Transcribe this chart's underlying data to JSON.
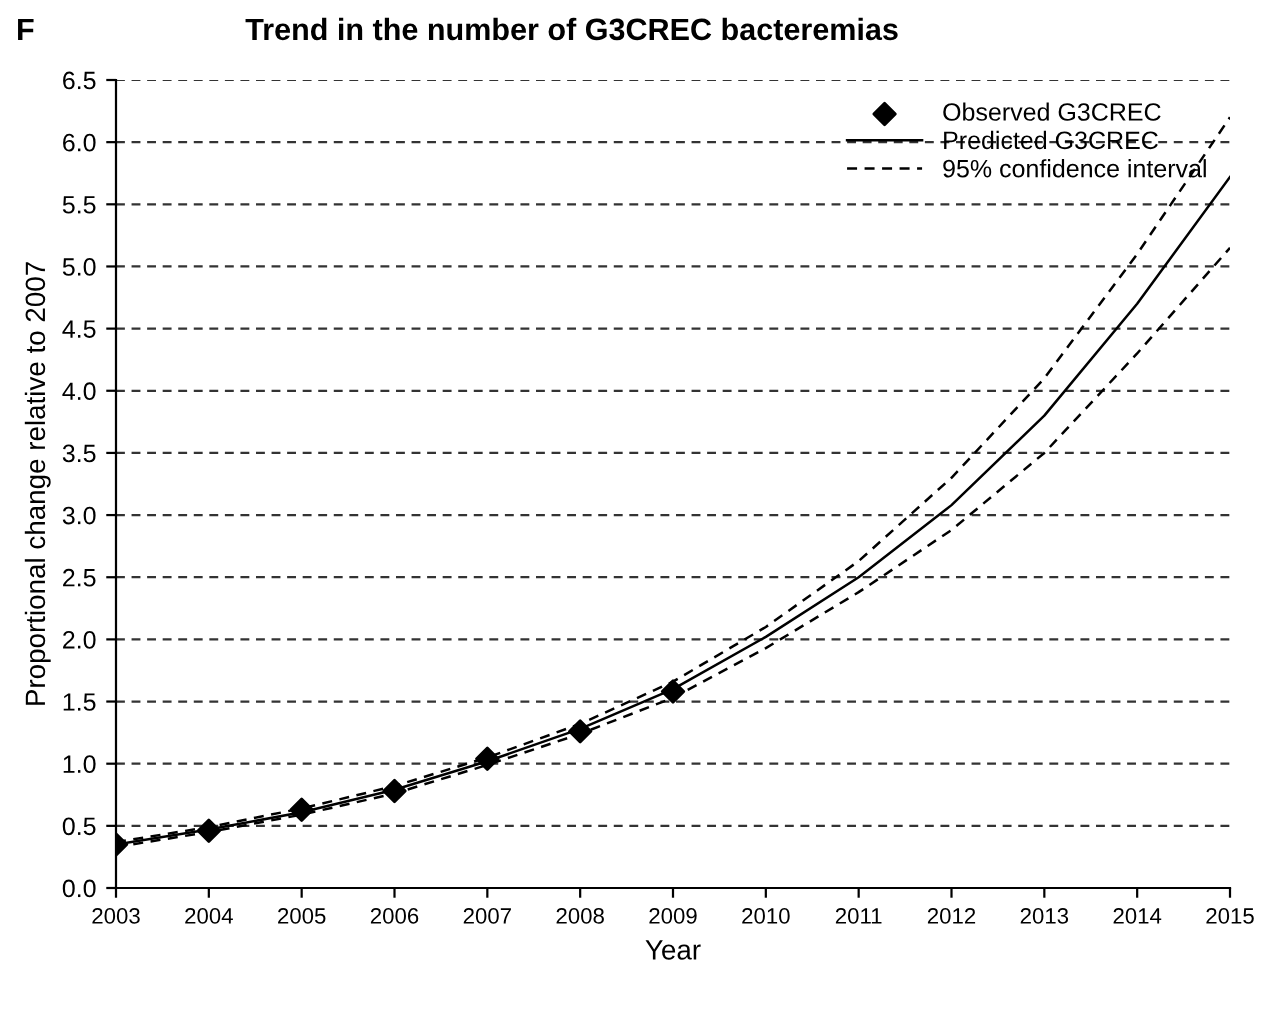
{
  "chart_data": {
    "type": "line",
    "title": "Trend in the number of G3CREC bacteremias",
    "xlabel": "Year",
    "ylabel": "Proportional change relative to 2007",
    "annotations": [
      "F"
    ],
    "x": [
      2003,
      2004,
      2005,
      2006,
      2007,
      2008,
      2009,
      2010,
      2011,
      2012,
      2013,
      2014,
      2015
    ],
    "series": [
      {
        "name": "Observed G3CREC",
        "type": "scatter",
        "marker": "diamond",
        "color": "#000000",
        "x": [
          2003,
          2004,
          2005,
          2006,
          2007,
          2008,
          2009
        ],
        "values": [
          0.35,
          0.46,
          0.63,
          0.78,
          1.04,
          1.26,
          1.58
        ]
      },
      {
        "name": "Predicted G3CREC",
        "line_style": "solid",
        "marker": "none",
        "color": "#000000",
        "values": [
          0.35,
          0.47,
          0.61,
          0.79,
          1.02,
          1.28,
          1.6,
          2.02,
          2.5,
          3.08,
          3.8,
          4.7,
          5.72
        ]
      },
      {
        "name": "95% confidence interval",
        "line_style": "dashed",
        "marker": "none",
        "color": "#000000",
        "values": [
          0.37,
          0.49,
          0.64,
          0.82,
          1.05,
          1.32,
          1.66,
          2.1,
          2.63,
          3.3,
          4.1,
          5.1,
          6.2
        ]
      },
      {
        "line_style": "dashed",
        "marker": "none",
        "color": "#000000",
        "values": [
          0.33,
          0.45,
          0.59,
          0.76,
          0.99,
          1.24,
          1.53,
          1.93,
          2.38,
          2.88,
          3.5,
          4.3,
          5.15
        ]
      }
    ],
    "xlim": [
      2003,
      2015
    ],
    "xticks": [
      2003,
      2004,
      2005,
      2006,
      2007,
      2008,
      2009,
      2010,
      2011,
      2012,
      2013,
      2014,
      2015
    ],
    "ylim": [
      0,
      6.5
    ],
    "yticks": [
      {
        "value": 0,
        "label": "0.0"
      },
      {
        "value": 0.5,
        "label": "0.5"
      },
      {
        "value": 1,
        "label": "1.0"
      },
      {
        "value": 1.5,
        "label": "1.5"
      },
      {
        "value": 2,
        "label": "2.0"
      },
      {
        "value": 2.5,
        "label": "2.5"
      },
      {
        "value": 3,
        "label": "3.0"
      },
      {
        "value": 3.5,
        "label": "3.5"
      },
      {
        "value": 4,
        "label": "4.0"
      },
      {
        "value": 4.5,
        "label": "4.5"
      },
      {
        "value": 5,
        "label": "5.0"
      },
      {
        "value": 5.5,
        "label": "5.5"
      },
      {
        "value": 6,
        "label": "6.0"
      },
      {
        "value": 6.5,
        "label": "6.5"
      }
    ],
    "grid": "y",
    "legend": "top right"
  }
}
